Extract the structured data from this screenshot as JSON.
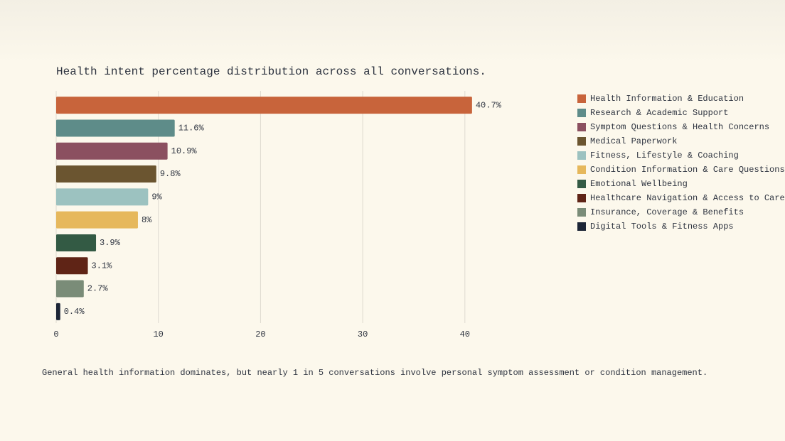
{
  "chart_data": {
    "type": "hbar",
    "title": "Health intent percentage distribution across all conversations.",
    "caption": "General health information dominates, but nearly 1 in 5 conversations involve personal symptom assessment or condition management.",
    "categories": [
      "Health Information & Education",
      "Research & Academic Support",
      "Symptom Questions & Health Concerns",
      "Medical Paperwork",
      "Fitness, Lifestyle & Coaching",
      "Condition Information & Care Questions",
      "Emotional Wellbeing",
      "Healthcare Navigation & Access to Care",
      "Insurance, Coverage & Benefits",
      "Digital Tools & Fitness Apps"
    ],
    "values": [
      40.7,
      11.6,
      10.9,
      9.8,
      9,
      8,
      3.9,
      3.1,
      2.7,
      0.4
    ],
    "value_labels": [
      "40.7%",
      "11.6%",
      "10.9%",
      "9.8%",
      "9%",
      "8%",
      "3.9%",
      "3.1%",
      "2.7%",
      "0.4%"
    ],
    "colors": [
      "#c8643b",
      "#5e8c89",
      "#8b5060",
      "#6b5530",
      "#9cc2c0",
      "#e6b85c",
      "#335a44",
      "#5f2416",
      "#7a8c78",
      "#1c2536"
    ],
    "xlim": [
      0,
      44
    ],
    "xticks": [
      0,
      10,
      20,
      30,
      40
    ],
    "grid": true,
    "legend": "right"
  }
}
